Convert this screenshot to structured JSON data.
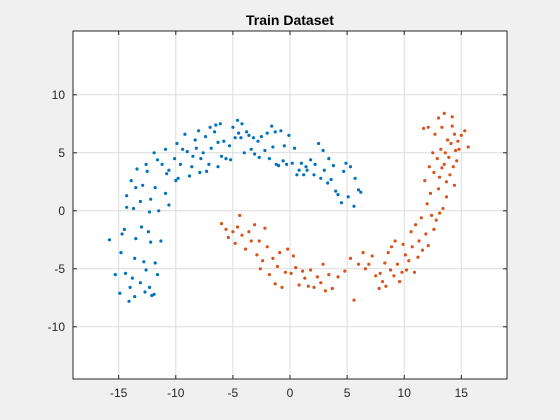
{
  "chart_data": {
    "type": "scatter",
    "title": "Train Dataset",
    "xlabel": "",
    "ylabel": "",
    "xlim": [
      -19,
      19
    ],
    "ylim": [
      -14.5,
      15.5
    ],
    "xticks": [
      -15,
      -10,
      -5,
      0,
      5,
      10,
      15
    ],
    "yticks": [
      -10,
      -5,
      0,
      5,
      10
    ],
    "grid": true,
    "series": [
      {
        "color": "#0072BD",
        "points": [
          [
            -15.8,
            -2.5
          ],
          [
            -15.3,
            -5.5
          ],
          [
            -14.9,
            -7.1
          ],
          [
            -14.8,
            -3.6
          ],
          [
            -14.7,
            -2.0
          ],
          [
            -14.5,
            -1.6
          ],
          [
            -14.4,
            -5.4
          ],
          [
            -14.1,
            -7.8
          ],
          [
            -14.3,
            1.3
          ],
          [
            -14.3,
            0.3
          ],
          [
            -14.0,
            -6.6
          ],
          [
            -13.8,
            -5.8
          ],
          [
            -13.6,
            -4.1
          ],
          [
            -13.7,
            0.2
          ],
          [
            -13.5,
            -2.4
          ],
          [
            -13.6,
            -7.4
          ],
          [
            -13.9,
            2.6
          ],
          [
            -13.5,
            2.0
          ],
          [
            -13.4,
            3.6
          ],
          [
            -13.1,
            -6.2
          ],
          [
            -13.0,
            -1.4
          ],
          [
            -13.1,
            0.8
          ],
          [
            -12.8,
            -4.4
          ],
          [
            -12.7,
            -7.0
          ],
          [
            -12.9,
            2.2
          ],
          [
            -12.6,
            -5.1
          ],
          [
            -12.6,
            4.0
          ],
          [
            -12.5,
            3.4
          ],
          [
            -12.4,
            -1.8
          ],
          [
            -12.3,
            -6.6
          ],
          [
            -12.3,
            -0.1
          ],
          [
            -12.2,
            -2.7
          ],
          [
            -12.1,
            -7.3
          ],
          [
            -12.2,
            1.0
          ],
          [
            -11.9,
            -7.2
          ],
          [
            -11.8,
            -4.5
          ],
          [
            -11.6,
            -5.5
          ],
          [
            -11.9,
            5.0
          ],
          [
            -11.8,
            2.0
          ],
          [
            -11.6,
            4.4
          ],
          [
            -11.5,
            0.0
          ],
          [
            -11.3,
            -2.6
          ],
          [
            -11.2,
            4.0
          ],
          [
            -10.9,
            1.5
          ],
          [
            -10.8,
            3.2
          ],
          [
            -10.9,
            5.3
          ],
          [
            -10.6,
            3.5
          ],
          [
            -10.6,
            0.5
          ],
          [
            -10.1,
            4.5
          ],
          [
            -10.0,
            2.6
          ],
          [
            -9.8,
            2.8
          ],
          [
            -9.9,
            5.8
          ],
          [
            -9.6,
            4.0
          ],
          [
            -9.4,
            5.3
          ],
          [
            -9.2,
            6.6
          ],
          [
            -9.0,
            5.1
          ],
          [
            -8.8,
            3.0
          ],
          [
            -8.6,
            3.8
          ],
          [
            -8.5,
            4.7
          ],
          [
            -8.3,
            6.1
          ],
          [
            -8.2,
            5.4
          ],
          [
            -8.0,
            6.9
          ],
          [
            -7.8,
            4.5
          ],
          [
            -7.9,
            3.3
          ],
          [
            -7.6,
            5.0
          ],
          [
            -7.4,
            6.4
          ],
          [
            -7.3,
            3.4
          ],
          [
            -7.1,
            4.0
          ],
          [
            -7.0,
            7.2
          ],
          [
            -6.9,
            5.4
          ],
          [
            -6.6,
            6.8
          ],
          [
            -6.5,
            7.4
          ],
          [
            -6.3,
            5.9
          ],
          [
            -6.3,
            3.8
          ],
          [
            -6.1,
            7.5
          ],
          [
            -6.0,
            4.7
          ],
          [
            -5.8,
            6.0
          ],
          [
            -5.6,
            4.5
          ],
          [
            -5.3,
            5.6
          ],
          [
            -5.2,
            4.4
          ],
          [
            -5.0,
            7.2
          ],
          [
            -4.8,
            6.3
          ],
          [
            -4.6,
            7.8
          ],
          [
            -4.5,
            6.7
          ],
          [
            -4.3,
            6.3
          ],
          [
            -4.2,
            7.5
          ],
          [
            -4.0,
            5.0
          ],
          [
            -3.8,
            6.8
          ],
          [
            -3.6,
            6.5
          ],
          [
            -3.4,
            5.3
          ],
          [
            -3.2,
            6.3
          ],
          [
            -3.1,
            4.9
          ],
          [
            -2.8,
            6.0
          ],
          [
            -2.7,
            4.6
          ],
          [
            -2.5,
            6.4
          ],
          [
            -2.2,
            5.2
          ],
          [
            -2.0,
            6.7
          ],
          [
            -1.8,
            4.5
          ],
          [
            -1.6,
            7.3
          ],
          [
            -1.5,
            5.5
          ],
          [
            -1.3,
            6.8
          ],
          [
            -1.2,
            4.0
          ],
          [
            -1.0,
            3.9
          ],
          [
            -0.8,
            6.9
          ],
          [
            -0.6,
            4.3
          ],
          [
            -0.5,
            5.6
          ],
          [
            -0.3,
            4.0
          ],
          [
            -0.1,
            6.5
          ],
          [
            0.2,
            4.1
          ],
          [
            0.4,
            5.4
          ],
          [
            0.6,
            3.1
          ],
          [
            0.8,
            3.5
          ],
          [
            1.0,
            4.1
          ],
          [
            1.2,
            3.1
          ],
          [
            1.4,
            3.8
          ],
          [
            1.5,
            3.5
          ],
          [
            1.8,
            4.4
          ],
          [
            2.1,
            3.1
          ],
          [
            2.2,
            4.0
          ],
          [
            2.5,
            5.8
          ],
          [
            2.7,
            2.8
          ],
          [
            2.9,
            5.2
          ],
          [
            3.0,
            3.5
          ],
          [
            3.3,
            2.4
          ],
          [
            3.4,
            4.5
          ],
          [
            3.6,
            2.7
          ],
          [
            3.8,
            3.9
          ],
          [
            4.0,
            1.7
          ],
          [
            4.2,
            1.4
          ],
          [
            4.5,
            0.7
          ],
          [
            4.7,
            3.4
          ],
          [
            4.9,
            4.1
          ],
          [
            5.1,
            1.2
          ],
          [
            5.3,
            3.8
          ],
          [
            5.6,
            0.4
          ],
          [
            5.7,
            2.8
          ],
          [
            6.0,
            1.8
          ],
          [
            6.2,
            1.6
          ]
        ]
      },
      {
        "color": "#D95319",
        "points": [
          [
            -6.0,
            -1.1
          ],
          [
            -5.6,
            -1.6
          ],
          [
            -5.4,
            -2.3
          ],
          [
            -5.0,
            -1.8
          ],
          [
            -4.8,
            -2.8
          ],
          [
            -4.6,
            -1.4
          ],
          [
            -4.4,
            -0.4
          ],
          [
            -4.2,
            -2.1
          ],
          [
            -3.9,
            -3.3
          ],
          [
            -3.6,
            -1.8
          ],
          [
            -3.4,
            -2.6
          ],
          [
            -3.1,
            -1.2
          ],
          [
            -2.9,
            -3.8
          ],
          [
            -2.7,
            -2.6
          ],
          [
            -2.6,
            -5.0
          ],
          [
            -2.4,
            -4.3
          ],
          [
            -2.2,
            -1.5
          ],
          [
            -2.0,
            -3.1
          ],
          [
            -1.8,
            -5.5
          ],
          [
            -1.5,
            -4.1
          ],
          [
            -1.3,
            -6.3
          ],
          [
            -1.1,
            -4.8
          ],
          [
            -0.9,
            -3.6
          ],
          [
            -0.7,
            -6.6
          ],
          [
            -0.4,
            -5.3
          ],
          [
            -0.2,
            -3.3
          ],
          [
            0.1,
            -5.4
          ],
          [
            0.3,
            -3.9
          ],
          [
            0.5,
            -4.9
          ],
          [
            0.8,
            -6.4
          ],
          [
            1.1,
            -5.2
          ],
          [
            1.3,
            -5.8
          ],
          [
            1.6,
            -6.5
          ],
          [
            1.8,
            -5.1
          ],
          [
            2.1,
            -6.6
          ],
          [
            2.4,
            -5.7
          ],
          [
            2.7,
            -6.2
          ],
          [
            2.9,
            -4.6
          ],
          [
            3.1,
            -6.9
          ],
          [
            3.4,
            -5.5
          ],
          [
            3.7,
            -6.7
          ],
          [
            4.2,
            -5.7
          ],
          [
            4.8,
            -5.2
          ],
          [
            5.3,
            -4.1
          ],
          [
            5.6,
            -7.7
          ],
          [
            6.0,
            -4.6
          ],
          [
            6.4,
            -3.6
          ],
          [
            6.6,
            -5.0
          ],
          [
            6.9,
            -4.6
          ],
          [
            7.2,
            -3.9
          ],
          [
            7.5,
            -5.6
          ],
          [
            7.8,
            -6.7
          ],
          [
            7.9,
            -5.4
          ],
          [
            8.1,
            -6.1
          ],
          [
            8.3,
            -4.5
          ],
          [
            8.4,
            -6.5
          ],
          [
            8.6,
            -3.6
          ],
          [
            8.8,
            -5.1
          ],
          [
            8.9,
            -3.1
          ],
          [
            9.1,
            -5.6
          ],
          [
            9.2,
            -2.6
          ],
          [
            9.4,
            -4.6
          ],
          [
            9.6,
            -6.1
          ],
          [
            9.8,
            -5.3
          ],
          [
            9.9,
            -2.9
          ],
          [
            10.1,
            -3.8
          ],
          [
            10.2,
            -5.1
          ],
          [
            10.4,
            -4.3
          ],
          [
            10.6,
            -1.8
          ],
          [
            10.7,
            -3.1
          ],
          [
            10.9,
            -5.3
          ],
          [
            11.0,
            -1.2
          ],
          [
            11.2,
            -4.0
          ],
          [
            11.3,
            -2.6
          ],
          [
            11.5,
            -0.6
          ],
          [
            11.6,
            -3.4
          ],
          [
            11.7,
            7.1
          ],
          [
            11.8,
            2.6
          ],
          [
            11.9,
            -2.0
          ],
          [
            12.0,
            0.6
          ],
          [
            12.1,
            -3.0
          ],
          [
            12.1,
            7.2
          ],
          [
            12.3,
            1.5
          ],
          [
            12.4,
            -0.4
          ],
          [
            12.5,
            5.0
          ],
          [
            12.6,
            3.3
          ],
          [
            12.6,
            -1.6
          ],
          [
            12.7,
            6.6
          ],
          [
            12.8,
            -0.8
          ],
          [
            12.9,
            4.5
          ],
          [
            13.0,
            1.9
          ],
          [
            13.0,
            8.0
          ],
          [
            13.1,
            -0.2
          ],
          [
            13.2,
            5.3
          ],
          [
            13.3,
            3.7
          ],
          [
            13.3,
            7.2
          ],
          [
            13.4,
            0.2
          ],
          [
            13.5,
            4.0
          ],
          [
            13.5,
            8.4
          ],
          [
            13.6,
            5.0
          ],
          [
            13.7,
            2.5
          ],
          [
            13.8,
            6.1
          ],
          [
            13.9,
            4.6
          ],
          [
            14.0,
            3.1
          ],
          [
            14.1,
            5.8
          ],
          [
            14.2,
            7.3
          ],
          [
            14.3,
            3.8
          ],
          [
            14.4,
            6.6
          ],
          [
            14.4,
            2.2
          ],
          [
            14.5,
            5.2
          ],
          [
            14.6,
            4.3
          ],
          [
            14.7,
            6.0
          ],
          [
            14.8,
            5.3
          ],
          [
            15.0,
            6.5
          ],
          [
            15.3,
            6.9
          ],
          [
            15.6,
            5.5
          ],
          [
            12.2,
            3.8
          ],
          [
            13.7,
            1.2
          ],
          [
            13.1,
            2.9
          ],
          [
            14.2,
            8.1
          ]
        ]
      }
    ]
  }
}
